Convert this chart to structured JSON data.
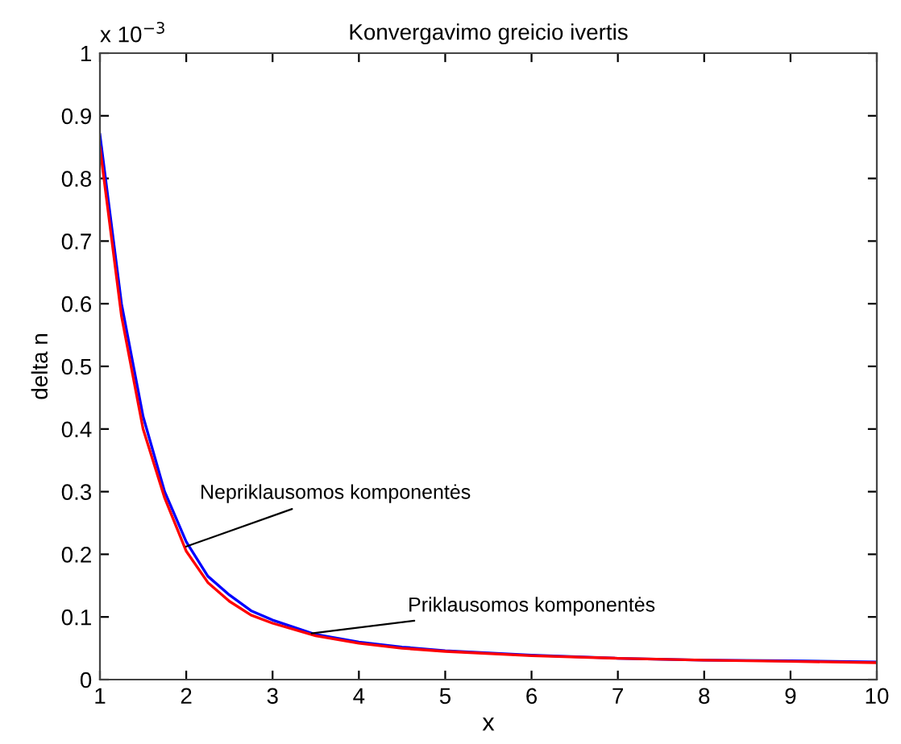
{
  "chart_data": {
    "type": "line",
    "title": "Konvergavimo greicio ivertis",
    "xlabel": "x",
    "ylabel": "delta n",
    "x": [
      1,
      1.25,
      1.5,
      1.75,
      2,
      2.25,
      2.5,
      2.75,
      3,
      3.5,
      4,
      4.5,
      5,
      6,
      7,
      8,
      9,
      10
    ],
    "series": [
      {
        "color": "#0000ff",
        "values": [
          0.87,
          0.6,
          0.42,
          0.3,
          0.22,
          0.165,
          0.135,
          0.11,
          0.095,
          0.072,
          0.06,
          0.052,
          0.046,
          0.039,
          0.034,
          0.031,
          0.03,
          0.028
        ]
      },
      {
        "color": "#ff0000",
        "values": [
          0.85,
          0.58,
          0.4,
          0.29,
          0.205,
          0.155,
          0.125,
          0.103,
          0.09,
          0.07,
          0.058,
          0.05,
          0.045,
          0.038,
          0.034,
          0.031,
          0.029,
          0.027
        ]
      }
    ],
    "xlim": [
      1,
      10
    ],
    "xticks": [
      1,
      2,
      3,
      4,
      5,
      6,
      7,
      8,
      9,
      10
    ],
    "ylim": [
      0,
      1
    ],
    "yticks": [
      0,
      0.1,
      0.2,
      0.3,
      0.4,
      0.5,
      0.6,
      0.7,
      0.8,
      0.9,
      1
    ],
    "annotations": [
      "x 10$^{−3}$",
      {
        "text": "Nepriklausomos komponentės",
        "x": 1.95,
        "y": 0.21
      },
      {
        "text": "Priklausomos komponentės",
        "x": 3.4,
        "y": 0.073
      }
    ],
    "grid": false,
    "legend": false,
    "marker": "none",
    "line_style": "solid"
  }
}
